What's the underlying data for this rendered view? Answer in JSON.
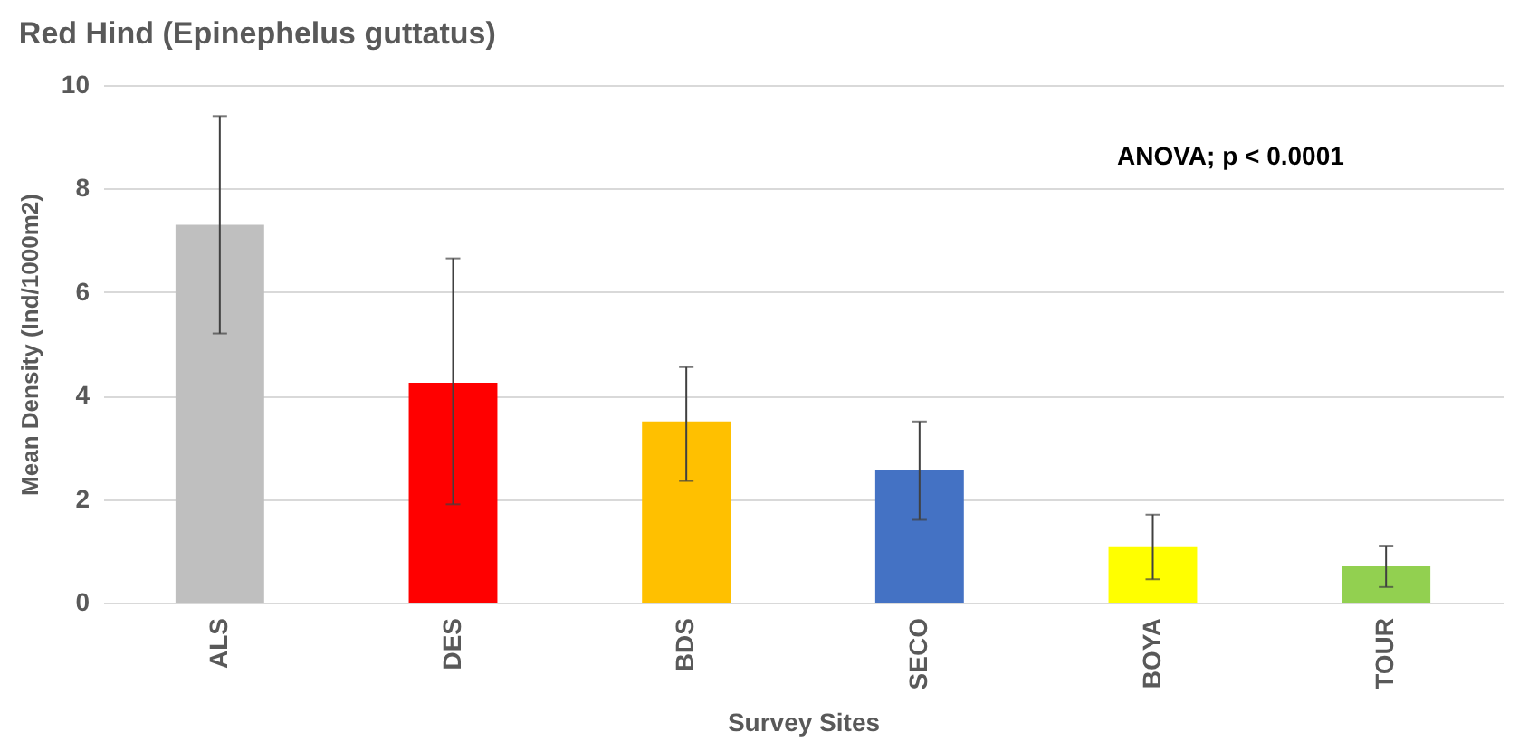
{
  "chart_data": {
    "type": "bar",
    "title": "Red Hind (Epinephelus guttatus)",
    "xlabel": "Survey Sites",
    "ylabel": "Mean Density (Ind/1000m2)",
    "categories": [
      "ALS",
      "DES",
      "BDS",
      "SECO",
      "BOYA",
      "TOUR"
    ],
    "values": [
      7.3,
      4.25,
      3.5,
      2.57,
      1.09,
      0.7
    ],
    "colors": [
      "#bfbfbf",
      "#ff0000",
      "#ffc000",
      "#4472c4",
      "#ffff00",
      "#92d050"
    ],
    "errors": [
      [
        5.2,
        9.4
      ],
      [
        1.9,
        6.65
      ],
      [
        2.35,
        4.55
      ],
      [
        1.6,
        3.5
      ],
      [
        0.45,
        1.7
      ],
      [
        0.3,
        1.1
      ]
    ],
    "ylim": [
      0,
      10
    ],
    "yticks": [
      0,
      2,
      4,
      6,
      8,
      10
    ],
    "grid": "y",
    "annotations": [
      "ANOVA; p < 0.0001"
    ]
  }
}
